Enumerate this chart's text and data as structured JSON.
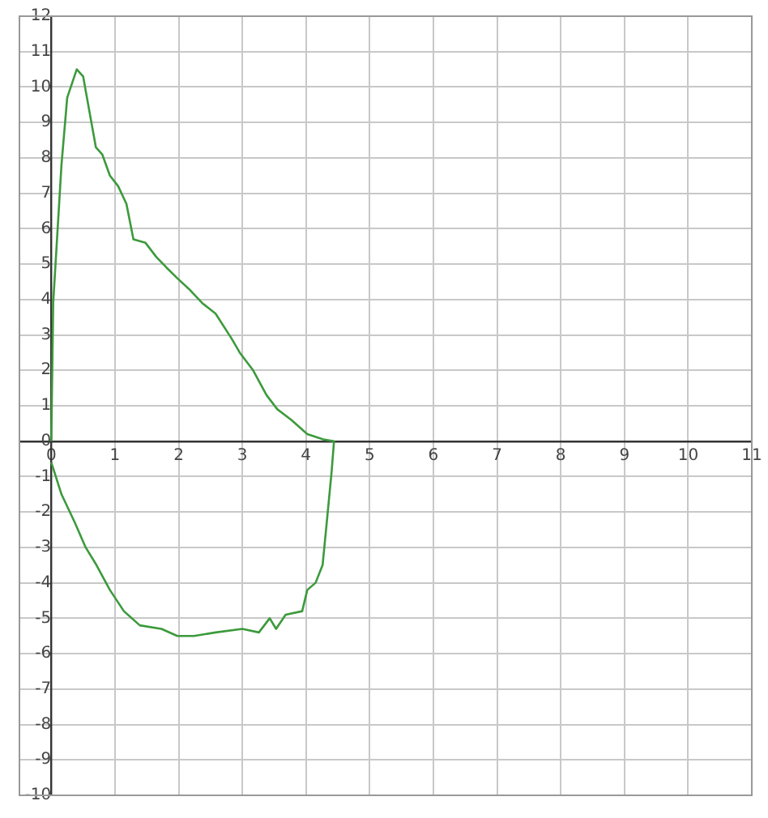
{
  "chart_data": {
    "type": "line",
    "x": [
      0,
      0.03,
      0.16,
      0.25,
      0.4,
      0.5,
      0.59,
      0.7,
      0.8,
      0.92,
      1.05,
      1.18,
      1.29,
      1.48,
      1.65,
      1.81,
      1.98,
      2.16,
      2.37,
      2.58,
      2.83,
      2.96,
      3.17,
      3.38,
      3.55,
      3.77,
      4.02,
      4.27,
      4.44,
      4.4,
      4.32,
      4.26,
      4.15,
      4.02,
      3.94,
      3.68,
      3.53,
      3.43,
      3.26,
      3,
      2.58,
      2.24,
      1.98,
      1.73,
      1.39,
      1.14,
      0.92,
      0.71,
      0.54,
      0.37,
      0.16,
      0
    ],
    "series": [
      {
        "color": "#3c9a3c",
        "values": [
          0,
          3.9,
          7.8,
          9.7,
          10.5,
          10.3,
          9.4,
          8.3,
          8.1,
          7.5,
          7.2,
          6.7,
          5.7,
          5.6,
          5.2,
          4.9,
          4.6,
          4.3,
          3.9,
          3.6,
          2.9,
          2.5,
          2,
          1.3,
          0.9,
          0.6,
          0.2,
          0.05,
          0,
          -0.9,
          -2.4,
          -3.5,
          -4,
          -4.2,
          -4.8,
          -4.9,
          -5.3,
          -5,
          -5.4,
          -5.3,
          -5.4,
          -5.5,
          -5.5,
          -5.3,
          -5.2,
          -4.8,
          -4.2,
          -3.5,
          -3,
          -2.3,
          -1.5,
          -0.6
        ]
      }
    ],
    "xlim": [
      -0.5,
      11
    ],
    "ylim": [
      -10,
      12
    ],
    "xticks": [
      0,
      1,
      2,
      3,
      4,
      5,
      6,
      7,
      8,
      9,
      10,
      11
    ],
    "yticks": [
      -10,
      -9,
      -8,
      -7,
      -6,
      -5,
      -4,
      -3,
      -2,
      -1,
      0,
      1,
      2,
      3,
      4,
      5,
      6,
      7,
      8,
      9,
      10,
      11,
      12
    ],
    "grid": true,
    "legend": false,
    "marker": "none",
    "line_style": "solid"
  }
}
